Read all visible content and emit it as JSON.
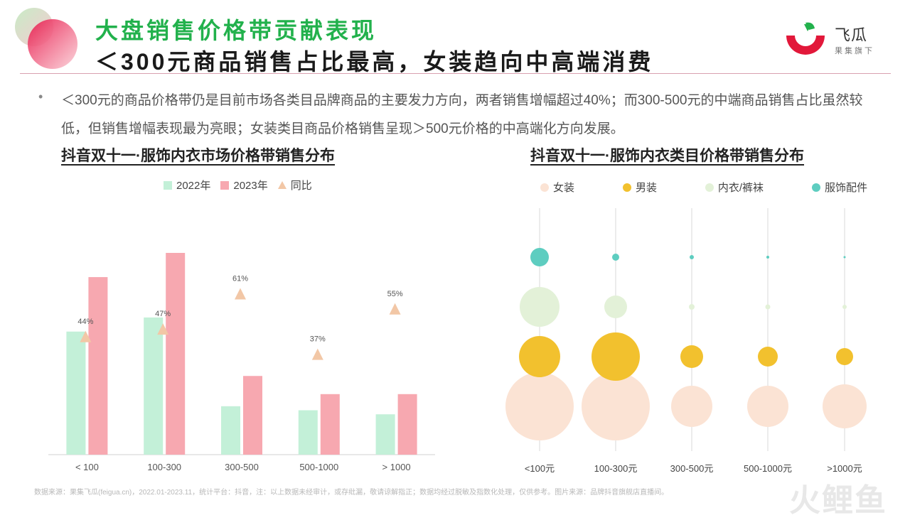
{
  "header": {
    "title_line1": "大盘销售价格带贡献表现",
    "title_line2": "＜300元商品销售占比最高，女装趋向中高端消费",
    "logo_name": "飞瓜",
    "logo_sub": "果集旗下"
  },
  "bullet": "＜300元的商品价格带仍是目前市场各类目品牌商品的主要发力方向，两者销售增幅超过40%；而300-500元的中端商品销售占比虽然较低，但销售增幅表现最为亮眼；女装类目商品价格销售呈现＞500元价格的中高端化方向发展。",
  "footer": "数据来源：果集飞瓜(feigua.cn)，2022.01-2023.11，统计平台：抖音，注：以上数据未经审计，或存纰漏，敬请谅解指正；数据均经过脱敏及指数化处理，仅供参考。图片来源：品牌抖音旗舰店直播间。",
  "watermark": "火鲤鱼",
  "colors": {
    "green_title": "#22b14c",
    "bar_2022": "#c3f0d8",
    "bar_2023": "#f7a8b0",
    "yoy_marker": "#f2c7a6",
    "women": "#fbe3d4",
    "men": "#f2c12e",
    "underwear": "#e3f1d8",
    "accessories": "#5ecdc0"
  },
  "chart_data": [
    {
      "type": "bar",
      "title": "抖音双十一·服饰内衣市场价格带销售分布",
      "categories": [
        "< 100",
        "100-300",
        "300-500",
        "500-1000",
        "> 1000"
      ],
      "ylim": [
        0,
        100
      ],
      "series": [
        {
          "name": "2022年",
          "values": [
            61,
            68,
            24,
            22,
            20
          ]
        },
        {
          "name": "2023年",
          "values": [
            88,
            100,
            39,
            30,
            30
          ]
        }
      ],
      "yoy": {
        "name": "同比",
        "values": [
          44,
          47,
          61,
          37,
          55
        ],
        "labels": [
          "44%",
          "47%",
          "61%",
          "37%",
          "55%"
        ],
        "ylim": [
          0,
          80
        ]
      },
      "legend": [
        "2022年",
        "2023年",
        "同比"
      ],
      "legend_position": "top"
    },
    {
      "type": "bubble",
      "title": "抖音双十一·服饰内衣类目价格带销售分布",
      "categories": [
        "<100元",
        "100-300元",
        "300-500元",
        "500-1000元",
        ">1000元"
      ],
      "series": [
        {
          "name": "服饰配件",
          "values": [
            13,
            5,
            3,
            2,
            1.5
          ]
        },
        {
          "name": "内衣/裤袜",
          "values": [
            28,
            16,
            4,
            3.5,
            3
          ]
        },
        {
          "name": "男装",
          "values": [
            29,
            34,
            16,
            14,
            12
          ]
        },
        {
          "name": "女装",
          "values": [
            48,
            48,
            29,
            29,
            31
          ]
        }
      ],
      "legend": [
        "女装",
        "男装",
        "内衣/裤袜",
        "服饰配件"
      ],
      "legend_position": "top"
    }
  ]
}
